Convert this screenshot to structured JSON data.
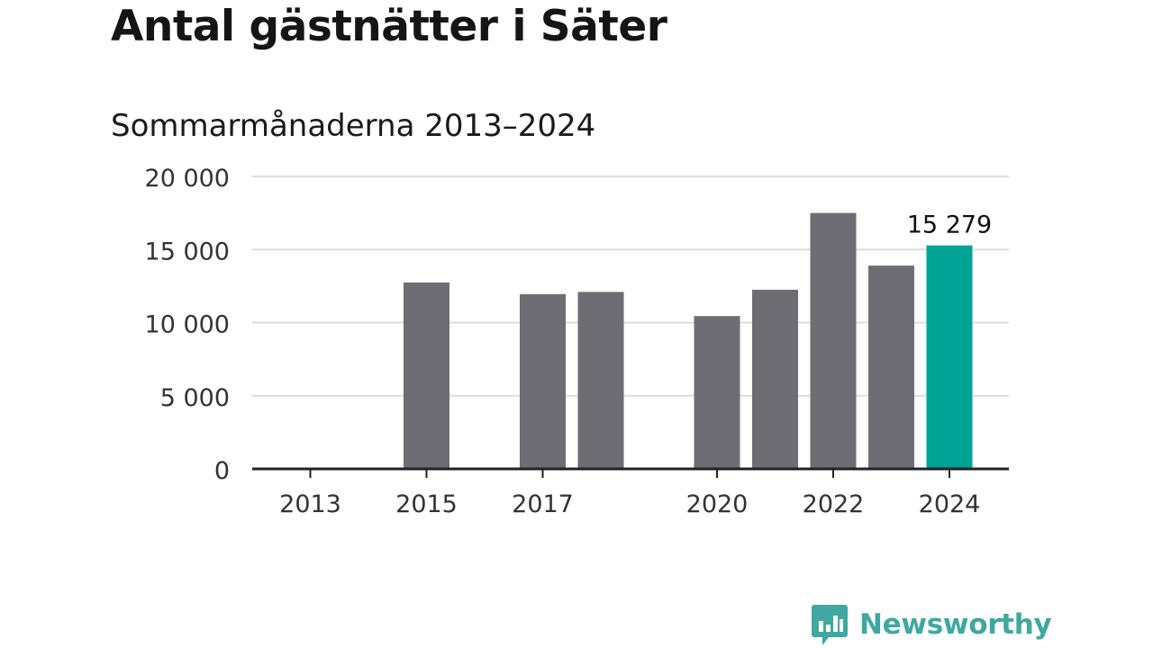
{
  "title": "Antal gästnätter i Säter",
  "subtitle": "Sommarmånaderna 2013–2024",
  "brand": {
    "name": "Newsworthy",
    "icon": "bar-chart-speech-bubble-icon"
  },
  "colors": {
    "bar": "#6e6d73",
    "highlight": "#00a396",
    "grid": "#dddddd",
    "axis": "#222222",
    "brand": "#3fa8a0"
  },
  "chart_data": {
    "type": "bar",
    "title": "Antal gästnätter i Säter",
    "subtitle": "Sommarmånaderna 2013–2024",
    "categories": [
      "2013",
      "2014",
      "2015",
      "2016",
      "2017",
      "2018",
      "2019",
      "2020",
      "2021",
      "2022",
      "2023",
      "2024"
    ],
    "values": [
      null,
      null,
      12750,
      null,
      11950,
      12100,
      null,
      10450,
      12250,
      17500,
      13900,
      15279
    ],
    "highlight_index": 11,
    "highlight_label": "15 279",
    "x_tick_labels": [
      "2013",
      "2015",
      "2017",
      "2020",
      "2022",
      "2024"
    ],
    "y_ticks": [
      0,
      5000,
      10000,
      15000,
      20000
    ],
    "y_tick_labels": [
      "0",
      "5 000",
      "10 000",
      "15 000",
      "20 000"
    ],
    "ylim": [
      0,
      20000
    ],
    "grid": true,
    "xlabel": "",
    "ylabel": ""
  }
}
